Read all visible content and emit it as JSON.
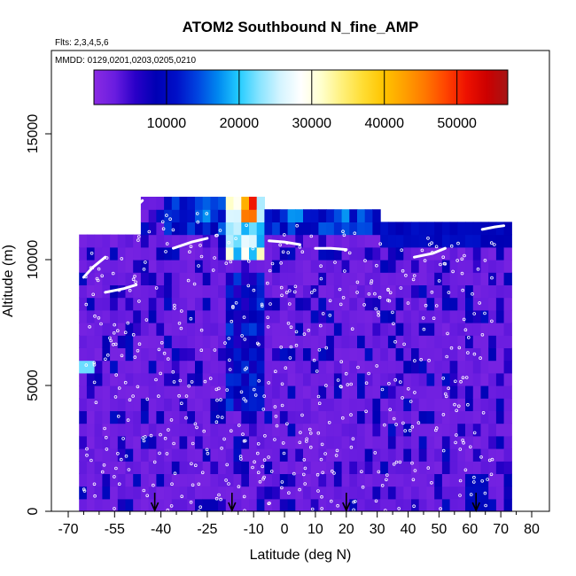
{
  "chart_data": {
    "type": "heatmap",
    "title": "ATOM2 Southbound N_fine_AMP",
    "subtitle_flights": "Flts: 2,3,4,5,6",
    "subtitle_dates": "MMDD: 0129,0201,0203,0205,0210",
    "xlabel": "Latitude (deg N)",
    "ylabel": "Altitude (m)",
    "xlim": [
      -70,
      80
    ],
    "ylim": [
      0,
      17500
    ],
    "x_ticks": [
      -70,
      -55,
      -40,
      -25,
      -10,
      0,
      10,
      20,
      30,
      40,
      50,
      60,
      70,
      80
    ],
    "x_tick_labels": [
      "-70",
      "-55",
      "-40",
      "-25",
      "-10",
      "0",
      "10",
      "20",
      "30",
      "40",
      "50",
      "60",
      "70",
      "80"
    ],
    "x_minor_ticks": [
      -65,
      -60,
      -50,
      -45,
      -35,
      -30,
      -20,
      -15,
      -5,
      5,
      15,
      25,
      35,
      45,
      55,
      65,
      75
    ],
    "y_ticks": [
      0,
      5000,
      10000,
      15000
    ],
    "y_tick_labels": [
      "0",
      "5000",
      "10000",
      "15000"
    ],
    "colorbar": {
      "min": 0,
      "max": 57000,
      "ticks": [
        10000,
        20000,
        30000,
        40000,
        50000
      ],
      "tick_labels": [
        "10000",
        "20000",
        "30000",
        "40000",
        "50000"
      ],
      "colors": [
        "#8a2be2",
        "#6a1de0",
        "#2a00c8",
        "#0000b4",
        "#0010c8",
        "#0044e0",
        "#0088f0",
        "#22ccff",
        "#88e4ff",
        "#d4f4ff",
        "#ffffff",
        "#ffffcc",
        "#fff07a",
        "#ffdd33",
        "#ffc400",
        "#ffa000",
        "#ff7800",
        "#ff4400",
        "#ee1100",
        "#cc0000",
        "#a51515"
      ]
    },
    "grid": false,
    "arrow_latitudes": [
      -42,
      -17,
      20,
      62
    ],
    "background_value": 2500
  }
}
